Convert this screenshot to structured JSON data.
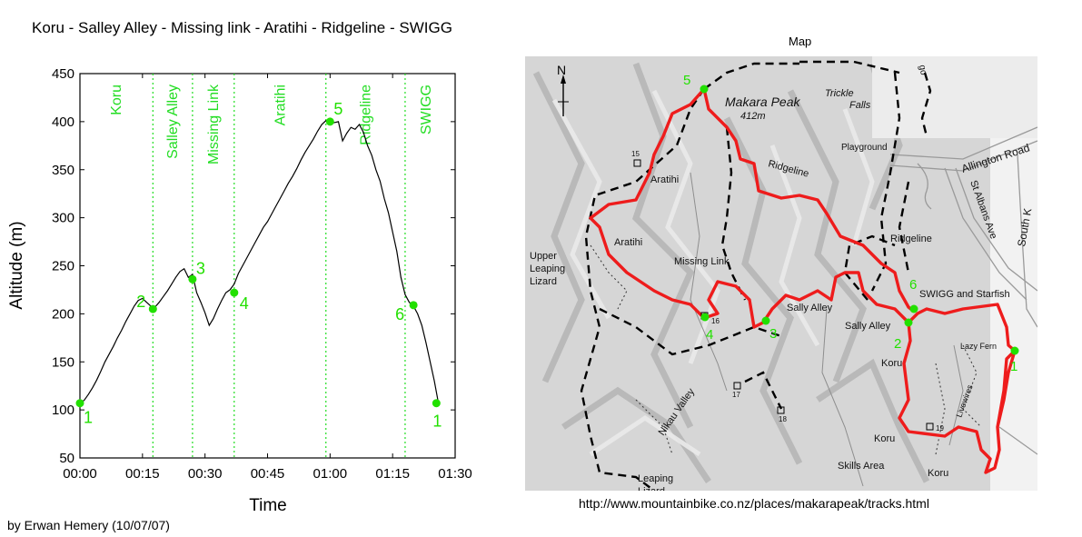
{
  "title": "Koru - Salley Alley - Missing link - Aratihi - Ridgeline - SWIGG",
  "credit": "by Erwan Hemery (10/07/07)",
  "chart_data": {
    "type": "line",
    "title": "Koru - Salley Alley - Missing link - Aratihi - Ridgeline - SWIGG",
    "xlabel": "Time",
    "ylabel": "Altitude (m)",
    "x_ticks": [
      "00:00",
      "00:15",
      "00:30",
      "00:45",
      "01:00",
      "01:15",
      "01:30"
    ],
    "x_tick_minutes": [
      0,
      15,
      30,
      45,
      60,
      75,
      90
    ],
    "y_ticks": [
      50,
      100,
      150,
      200,
      250,
      300,
      350,
      400,
      450
    ],
    "xlim_minutes": [
      0,
      90
    ],
    "ylim": [
      50,
      450
    ],
    "line_color": "#000000",
    "marker_color": "#22e000",
    "divider_color": "#22dd22",
    "grid": false,
    "series": [
      {
        "x_minutes": [
          0,
          1,
          2,
          3,
          4,
          5,
          6,
          7,
          8,
          9,
          10,
          11,
          12,
          13,
          14,
          15,
          16,
          17,
          18,
          19,
          20,
          21,
          22,
          23,
          24,
          25,
          26,
          27,
          28,
          29,
          30,
          31,
          32,
          33,
          34,
          35,
          36,
          37,
          38,
          39,
          40,
          41,
          42,
          43,
          44,
          45,
          46,
          47,
          48,
          49,
          50,
          51,
          52,
          53,
          54,
          55,
          56,
          57,
          58,
          59,
          60,
          61,
          62,
          63,
          64,
          65,
          66,
          67,
          68,
          69,
          70,
          71,
          72,
          73,
          74,
          75,
          76,
          77,
          78,
          79,
          80,
          81,
          82,
          83,
          84,
          85,
          86
        ],
        "altitude": [
          107,
          110,
          116,
          123,
          131,
          140,
          150,
          158,
          166,
          175,
          183,
          192,
          200,
          208,
          214,
          216,
          212,
          208,
          207,
          212,
          218,
          224,
          231,
          238,
          244,
          247,
          238,
          241,
          222,
          212,
          201,
          188,
          195,
          205,
          214,
          222,
          225,
          231,
          242,
          250,
          258,
          266,
          274,
          282,
          290,
          296,
          304,
          312,
          320,
          328,
          336,
          343,
          351,
          360,
          368,
          375,
          382,
          390,
          397,
          401,
          398,
          399,
          400,
          380,
          388,
          394,
          392,
          397,
          389,
          375,
          365,
          350,
          338,
          320,
          305,
          285,
          265,
          238,
          220,
          212,
          208,
          200,
          188,
          170,
          150,
          130,
          107
        ]
      }
    ],
    "points": [
      {
        "label": "1",
        "minute": 0,
        "altitude": 107
      },
      {
        "label": "2",
        "minute": 17.5,
        "altitude": 205
      },
      {
        "label": "3",
        "minute": 27,
        "altitude": 236
      },
      {
        "label": "4",
        "minute": 37,
        "altitude": 222
      },
      {
        "label": "5",
        "minute": 60,
        "altitude": 400
      },
      {
        "label": "6",
        "minute": 80,
        "altitude": 209
      },
      {
        "label": "1",
        "minute": 85.5,
        "altitude": 107
      }
    ],
    "segments": [
      {
        "label": "Koru",
        "start": 0,
        "end": 17.5
      },
      {
        "label": "Salley Alley",
        "start": 17.5,
        "end": 27
      },
      {
        "label": "Missing Link",
        "start": 27,
        "end": 37
      },
      {
        "label": "Aratihi",
        "start": 37,
        "end": 59
      },
      {
        "label": "Ridgeline",
        "start": 59,
        "end": 78
      },
      {
        "label": "SWIGG",
        "start": 78,
        "end": 88
      }
    ]
  },
  "map": {
    "title": "Map",
    "url": "http://www.mountainbike.co.nz/places/makarapeak/tracks.html",
    "north": "N",
    "route_color": "#ee1c1c",
    "labels": {
      "makara_peak": "Makara Peak",
      "elevation": "412m",
      "trickle_falls_1": "Trickle",
      "trickle_falls_2": "Falls",
      "playground": "Playground",
      "allington_road": "Allington Road",
      "st_albans": "St Albans Ave",
      "south_k": "South K",
      "ridgeline_1": "Ridgeline",
      "ridgeline_2": "Ridgeline",
      "aratihi_1": "Aratihi",
      "aratihi_2": "Aratihi",
      "upper_1": "Upper",
      "upper_2": "Leaping",
      "upper_3": "Lizard",
      "missing_link": "Missing Link",
      "sally_alley_1": "Sally Alley",
      "sally_alley_2": "Sally Alley",
      "swigg": "SWIGG and Starfish",
      "lazy_fern": "Lazy Fern",
      "koru_1": "Koru",
      "koru_2": "Koru",
      "koru_3": "Koru",
      "livewires": "Livewires",
      "skills_area": "Skills Area",
      "nikau_valley": "Nikau Valley",
      "leaping_1": "Leaping",
      "leaping_2": "Lizard",
      "num_15": "15",
      "num_16": "16",
      "num_17": "17",
      "num_18": "18",
      "num_19": "19",
      "go": "go"
    },
    "points": [
      {
        "label": "5"
      },
      {
        "label": "4"
      },
      {
        "label": "3"
      },
      {
        "label": "2"
      },
      {
        "label": "6"
      },
      {
        "label": "1"
      }
    ]
  }
}
